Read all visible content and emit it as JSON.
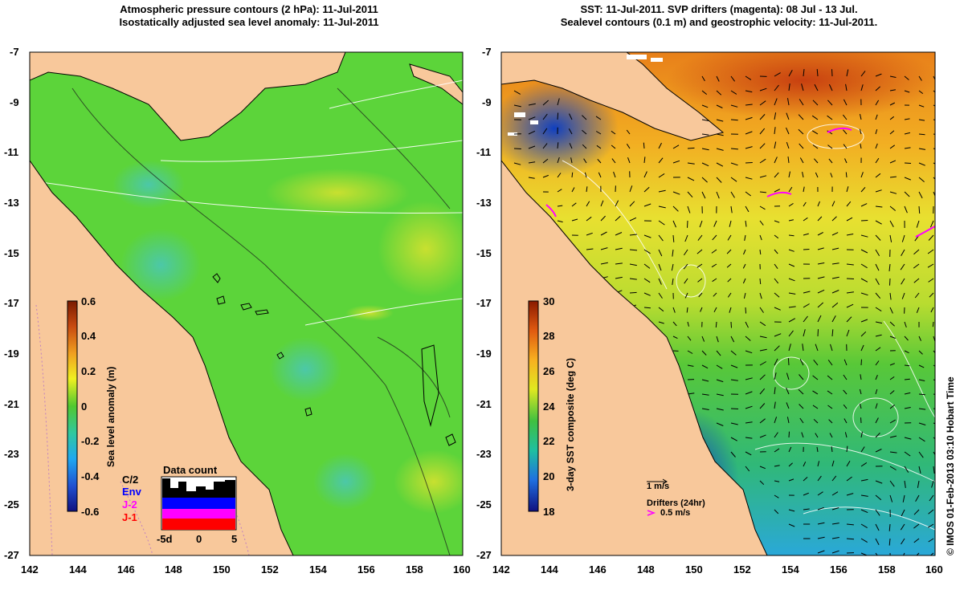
{
  "left_panel": {
    "title_line1": "Atmospheric pressure contours (2 hPa): 11-Jul-2011",
    "title_line2": "Isostatically adjusted sea level anomaly: 11-Jul-2011",
    "colorbar": {
      "label": "Sea level anomaly (m)",
      "ticks": [
        "0.6",
        "0.4",
        "0.2",
        "0",
        "-0.2",
        "-0.4",
        "-0.6"
      ]
    },
    "data_count": {
      "title": "Data count",
      "sources": [
        "C/2",
        "Env",
        "J-2",
        "J-1"
      ],
      "source_colors": [
        "#000000",
        "#0000ff",
        "#ff00ff",
        "#ff0000"
      ],
      "x_ticks": [
        "-5d",
        "0",
        "5"
      ]
    }
  },
  "right_panel": {
    "title_line1": "SST: 11-Jul-2011. SVP drifters (magenta): 08 Jul - 13 Jul.",
    "title_line2": "Sealevel contours (0.1 m) and geostrophic velocity: 11-Jul-2011.",
    "colorbar": {
      "label": "3-day SST composite (deg C)",
      "ticks": [
        "30",
        "28",
        "26",
        "24",
        "22",
        "20",
        "18"
      ]
    },
    "velocity_scale": "1 m/s",
    "drifters_label": "Drifters (24hr)",
    "drifter_scale": "0.5 m/s"
  },
  "axes": {
    "lat_ticks": [
      "-7",
      "-9",
      "-11",
      "-13",
      "-15",
      "-17",
      "-19",
      "-21",
      "-23",
      "-25",
      "-27"
    ],
    "lon_ticks": [
      "142",
      "144",
      "146",
      "148",
      "150",
      "152",
      "154",
      "156",
      "158",
      "160"
    ]
  },
  "credit": "© IMOS 01-Feb-2013 03:10 Hobart Time",
  "colors": {
    "land": "#f8c89b",
    "sla_base": "#5cd43a",
    "sst_warm": "#f09a1e",
    "drifter": "#ff00ff"
  }
}
